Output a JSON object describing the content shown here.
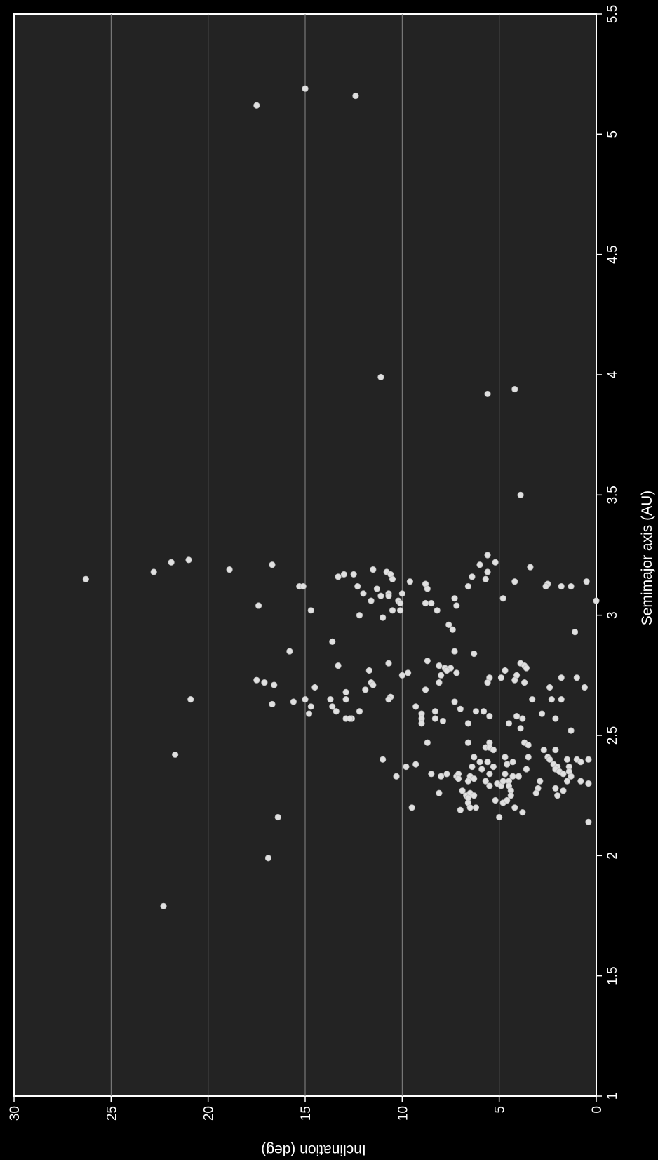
{
  "chart_data": {
    "type": "scatter",
    "title": "",
    "xlabel": "Semimajor axis (AU)",
    "ylabel": "Inclination (deg)",
    "xlim": [
      1,
      5.5
    ],
    "ylim": [
      0,
      30
    ],
    "xticks": [
      "1",
      "1.5",
      "2",
      "2.5",
      "3",
      "3.5",
      "4",
      "4.5",
      "5",
      "5.5"
    ],
    "yticks": [
      "0",
      "5",
      "10",
      "15",
      "20",
      "25",
      "30"
    ],
    "grid": "horizontal",
    "colors": {
      "background": "#222222",
      "plot_background": "#232323",
      "grid": "#888888",
      "points": "#e0e0e0",
      "frame": "#ffffff"
    },
    "series": [
      {
        "points": [
          [
            1.79,
            22.3
          ],
          [
            1.99,
            16.9
          ],
          [
            2.16,
            16.4
          ],
          [
            2.42,
            21.7
          ],
          [
            2.65,
            20.9
          ],
          [
            3.15,
            26.3
          ],
          [
            3.18,
            22.8
          ],
          [
            3.22,
            21.9
          ],
          [
            3.23,
            21.0
          ],
          [
            3.19,
            18.9
          ],
          [
            3.21,
            16.7
          ],
          [
            3.04,
            17.4
          ],
          [
            2.73,
            17.5
          ],
          [
            2.72,
            17.1
          ],
          [
            2.71,
            16.6
          ],
          [
            2.63,
            16.7
          ],
          [
            2.85,
            15.8
          ],
          [
            2.64,
            15.6
          ],
          [
            2.65,
            15.0
          ],
          [
            2.7,
            14.5
          ],
          [
            2.62,
            14.7
          ],
          [
            2.59,
            14.8
          ],
          [
            3.12,
            15.3
          ],
          [
            3.12,
            15.1
          ],
          [
            3.02,
            14.7
          ],
          [
            2.89,
            13.6
          ],
          [
            2.79,
            13.3
          ],
          [
            2.65,
            13.7
          ],
          [
            2.62,
            13.6
          ],
          [
            2.6,
            13.4
          ],
          [
            2.68,
            12.9
          ],
          [
            2.65,
            12.9
          ],
          [
            2.57,
            12.9
          ],
          [
            2.57,
            12.6
          ],
          [
            2.57,
            12.7
          ],
          [
            3.17,
            13.0
          ],
          [
            3.16,
            13.3
          ],
          [
            3.17,
            12.5
          ],
          [
            3.12,
            12.3
          ],
          [
            3.0,
            12.2
          ],
          [
            3.09,
            12.0
          ],
          [
            2.77,
            11.7
          ],
          [
            2.72,
            11.6
          ],
          [
            2.71,
            11.5
          ],
          [
            2.69,
            11.9
          ],
          [
            2.6,
            12.2
          ],
          [
            3.19,
            11.5
          ],
          [
            3.11,
            11.3
          ],
          [
            3.06,
            11.6
          ],
          [
            3.08,
            11.1
          ],
          [
            2.99,
            11.0
          ],
          [
            3.18,
            10.8
          ],
          [
            3.17,
            10.6
          ],
          [
            3.15,
            10.5
          ],
          [
            3.09,
            10.7
          ],
          [
            3.08,
            10.7
          ],
          [
            3.06,
            10.2
          ],
          [
            3.05,
            10.1
          ],
          [
            3.02,
            10.5
          ],
          [
            3.02,
            10.1
          ],
          [
            3.09,
            10.0
          ],
          [
            2.8,
            10.7
          ],
          [
            2.75,
            10.0
          ],
          [
            2.76,
            9.7
          ],
          [
            2.66,
            10.6
          ],
          [
            2.65,
            10.7
          ],
          [
            2.4,
            11.0
          ],
          [
            2.33,
            10.3
          ],
          [
            3.14,
            9.6
          ],
          [
            3.13,
            8.8
          ],
          [
            3.11,
            8.7
          ],
          [
            3.05,
            8.8
          ],
          [
            3.05,
            8.5
          ],
          [
            3.02,
            8.2
          ],
          [
            2.81,
            8.7
          ],
          [
            2.79,
            8.1
          ],
          [
            2.75,
            8.0
          ],
          [
            2.72,
            8.1
          ],
          [
            2.69,
            8.8
          ],
          [
            2.62,
            9.3
          ],
          [
            2.59,
            9.0
          ],
          [
            2.57,
            9.0
          ],
          [
            2.55,
            9.0
          ],
          [
            2.6,
            8.3
          ],
          [
            2.57,
            8.3
          ],
          [
            2.56,
            7.9
          ],
          [
            2.37,
            9.8
          ],
          [
            2.38,
            9.3
          ],
          [
            2.47,
            8.7
          ],
          [
            2.34,
            8.5
          ],
          [
            2.33,
            8.0
          ],
          [
            2.26,
            8.1
          ],
          [
            2.2,
            9.5
          ],
          [
            3.07,
            7.3
          ],
          [
            3.04,
            7.2
          ],
          [
            2.96,
            7.6
          ],
          [
            2.94,
            7.4
          ],
          [
            2.85,
            7.3
          ],
          [
            2.78,
            7.8
          ],
          [
            2.78,
            7.5
          ],
          [
            2.77,
            7.7
          ],
          [
            2.76,
            7.2
          ],
          [
            2.64,
            7.3
          ],
          [
            2.61,
            7.0
          ],
          [
            2.55,
            6.6
          ],
          [
            2.47,
            6.6
          ],
          [
            2.34,
            7.7
          ],
          [
            2.33,
            7.2
          ],
          [
            2.34,
            7.1
          ],
          [
            2.32,
            7.1
          ],
          [
            2.27,
            6.9
          ],
          [
            2.25,
            6.7
          ],
          [
            2.22,
            6.6
          ],
          [
            2.19,
            7.0
          ],
          [
            3.12,
            6.6
          ],
          [
            3.16,
            6.4
          ],
          [
            3.21,
            6.0
          ],
          [
            3.25,
            5.6
          ],
          [
            3.22,
            5.2
          ],
          [
            3.18,
            5.6
          ],
          [
            3.15,
            5.7
          ],
          [
            2.84,
            6.3
          ],
          [
            2.74,
            5.5
          ],
          [
            2.74,
            4.9
          ],
          [
            2.72,
            5.6
          ],
          [
            2.6,
            6.2
          ],
          [
            2.6,
            5.8
          ],
          [
            2.58,
            5.5
          ],
          [
            2.47,
            5.5
          ],
          [
            2.45,
            5.7
          ],
          [
            2.45,
            5.5
          ],
          [
            2.44,
            5.3
          ],
          [
            2.41,
            6.3
          ],
          [
            2.39,
            6.0
          ],
          [
            2.39,
            5.6
          ],
          [
            2.37,
            6.4
          ],
          [
            2.37,
            5.3
          ],
          [
            2.36,
            5.9
          ],
          [
            2.34,
            5.5
          ],
          [
            2.33,
            6.5
          ],
          [
            2.32,
            6.3
          ],
          [
            2.31,
            6.6
          ],
          [
            2.31,
            5.7
          ],
          [
            2.3,
            5.1
          ],
          [
            2.29,
            5.5
          ],
          [
            2.29,
            4.9
          ],
          [
            2.26,
            6.5
          ],
          [
            2.25,
            6.3
          ],
          [
            2.24,
            6.6
          ],
          [
            2.23,
            5.2
          ],
          [
            2.22,
            4.8
          ],
          [
            2.2,
            6.5
          ],
          [
            2.2,
            6.2
          ],
          [
            2.16,
            5.0
          ],
          [
            3.92,
            5.6
          ],
          [
            3.94,
            4.2
          ],
          [
            3.5,
            3.9
          ],
          [
            3.07,
            4.8
          ],
          [
            3.14,
            4.2
          ],
          [
            3.2,
            3.4
          ],
          [
            2.8,
            3.9
          ],
          [
            2.79,
            3.7
          ],
          [
            2.78,
            3.6
          ],
          [
            2.77,
            4.7
          ],
          [
            2.75,
            4.1
          ],
          [
            2.73,
            4.2
          ],
          [
            2.72,
            3.7
          ],
          [
            2.65,
            3.3
          ],
          [
            2.58,
            4.1
          ],
          [
            2.57,
            3.8
          ],
          [
            2.55,
            4.5
          ],
          [
            2.53,
            3.9
          ],
          [
            2.47,
            3.7
          ],
          [
            2.46,
            3.5
          ],
          [
            2.41,
            3.5
          ],
          [
            2.41,
            4.7
          ],
          [
            2.39,
            4.3
          ],
          [
            2.38,
            4.6
          ],
          [
            2.36,
            3.6
          ],
          [
            2.34,
            4.7
          ],
          [
            2.33,
            4.3
          ],
          [
            2.33,
            4.0
          ],
          [
            2.31,
            4.5
          ],
          [
            2.31,
            4.8
          ],
          [
            2.29,
            4.5
          ],
          [
            2.27,
            4.4
          ],
          [
            2.25,
            4.4
          ],
          [
            2.23,
            4.6
          ],
          [
            2.2,
            4.2
          ],
          [
            2.18,
            3.8
          ],
          [
            3.13,
            2.5
          ],
          [
            3.12,
            2.6
          ],
          [
            3.12,
            1.8
          ],
          [
            3.12,
            1.3
          ],
          [
            3.14,
            0.5
          ],
          [
            3.06,
            0.0
          ],
          [
            2.93,
            1.1
          ],
          [
            2.74,
            1.8
          ],
          [
            2.74,
            1.0
          ],
          [
            2.7,
            2.4
          ],
          [
            2.7,
            0.6
          ],
          [
            2.65,
            2.3
          ],
          [
            2.65,
            1.8
          ],
          [
            2.59,
            2.8
          ],
          [
            2.57,
            2.1
          ],
          [
            2.52,
            1.3
          ],
          [
            2.44,
            2.7
          ],
          [
            2.44,
            2.1
          ],
          [
            2.41,
            2.5
          ],
          [
            2.4,
            2.4
          ],
          [
            2.4,
            1.5
          ],
          [
            2.4,
            1.0
          ],
          [
            2.38,
            2.2
          ],
          [
            2.37,
            2.0
          ],
          [
            2.37,
            1.4
          ],
          [
            2.36,
            2.1
          ],
          [
            2.35,
            1.9
          ],
          [
            2.35,
            1.4
          ],
          [
            2.34,
            1.7
          ],
          [
            2.33,
            1.3
          ],
          [
            2.31,
            2.9
          ],
          [
            2.31,
            1.5
          ],
          [
            2.3,
            0.4
          ],
          [
            2.28,
            3.0
          ],
          [
            2.28,
            2.1
          ],
          [
            2.27,
            1.7
          ],
          [
            2.26,
            3.1
          ],
          [
            2.25,
            2.0
          ],
          [
            2.4,
            0.4
          ],
          [
            2.39,
            0.8
          ],
          [
            2.31,
            0.8
          ],
          [
            2.14,
            0.4
          ],
          [
            5.19,
            15.0
          ],
          [
            5.16,
            12.4
          ],
          [
            5.12,
            17.5
          ],
          [
            3.99,
            11.1
          ]
        ]
      }
    ]
  }
}
